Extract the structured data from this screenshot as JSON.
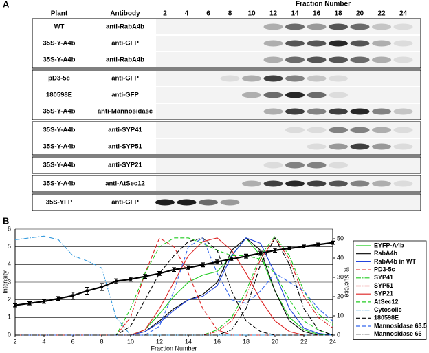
{
  "panel_a": {
    "label": "A",
    "header": {
      "plant": "Plant",
      "antibody": "Antibody",
      "fraction_title": "Fraction Number",
      "fractions": [
        2,
        4,
        6,
        8,
        10,
        12,
        14,
        16,
        18,
        20,
        22,
        24
      ]
    },
    "groups": [
      [
        {
          "plant": "WT",
          "antibody": "anti-RabA4b",
          "bands": [
            0,
            0,
            0,
            0,
            0,
            0.3,
            0.6,
            0.4,
            0.7,
            0.6,
            0.2,
            0.1
          ]
        },
        {
          "plant": "35S-Y-A4b",
          "antibody": "anti-GFP",
          "bands": [
            0,
            0,
            0,
            0,
            0,
            0.3,
            0.7,
            0.7,
            0.9,
            0.7,
            0.3,
            0.1
          ]
        },
        {
          "plant": "35S-Y-A4b",
          "antibody": "anti-RabA4b",
          "bands": [
            0,
            0,
            0,
            0,
            0,
            0.3,
            0.6,
            0.7,
            0.7,
            0.6,
            0.3,
            0.1
          ]
        }
      ],
      [
        {
          "plant": "pD3-5c",
          "antibody": "anti-GFP",
          "bands": [
            0,
            0,
            0,
            0.1,
            0.3,
            0.8,
            0.5,
            0.2,
            0.1,
            0,
            0,
            0
          ]
        },
        {
          "plant": "180598E",
          "antibody": "anti-GFP",
          "bands": [
            0,
            0,
            0,
            0,
            0.3,
            0.6,
            0.9,
            0.6,
            0.1,
            0,
            0,
            0
          ]
        },
        {
          "plant": "35S-Y-A4b",
          "antibody": "anti-Mannosidase",
          "bands": [
            0,
            0,
            0,
            0,
            0,
            0.3,
            0.8,
            0.5,
            0.8,
            0.9,
            0.5,
            0.2
          ]
        }
      ],
      [
        {
          "plant": "35S-Y-A4b",
          "antibody": "anti-SYP41",
          "bands": [
            0,
            0,
            0,
            0,
            0,
            0,
            0.1,
            0.1,
            0.5,
            0.5,
            0.3,
            0.1
          ]
        },
        {
          "plant": "35S-Y-A4b",
          "antibody": "anti-SYP51",
          "bands": [
            0,
            0,
            0,
            0,
            0,
            0,
            0,
            0.1,
            0.4,
            0.8,
            0.4,
            0.1
          ]
        }
      ],
      [
        {
          "plant": "35S-Y-A4b",
          "antibody": "anti-SYP21",
          "bands": [
            0,
            0,
            0,
            0,
            0,
            0.1,
            0.5,
            0.5,
            0.1,
            0,
            0,
            0
          ]
        }
      ],
      [
        {
          "plant": "35S-Y-A4b",
          "antibody": "anti-AtSec12",
          "bands": [
            0,
            0,
            0,
            0,
            0.3,
            0.8,
            0.9,
            0.8,
            0.7,
            0.5,
            0.3,
            0.1
          ]
        }
      ],
      [
        {
          "plant": "35S-YFP",
          "antibody": "anti-GFP",
          "bands": [
            0.95,
            0.95,
            0.6,
            0.4,
            0,
            0,
            0,
            0,
            0,
            0,
            0,
            0
          ]
        }
      ]
    ]
  },
  "chart_data": {
    "type": "line",
    "label": "B",
    "x_label": "Fraction Number",
    "y_label": "Intensity",
    "y2_label": "% Sucrose",
    "x": [
      2,
      3,
      4,
      5,
      6,
      7,
      8,
      9,
      10,
      11,
      12,
      13,
      14,
      15,
      16,
      17,
      18,
      19,
      20,
      21,
      22,
      23,
      24
    ],
    "xlim": [
      2,
      24
    ],
    "xticks": [
      2,
      4,
      6,
      8,
      10,
      12,
      14,
      16,
      18,
      20,
      22,
      24
    ],
    "ylim": [
      0,
      6
    ],
    "yticks": [
      0,
      1,
      2,
      3,
      4,
      5,
      6
    ],
    "y2lim": [
      0,
      55
    ],
    "y2ticks": [
      0,
      10,
      20,
      30,
      40,
      50
    ],
    "grid": true,
    "series": [
      {
        "name": "EYFP-A4b",
        "color": "#22cc22",
        "dash": "solid",
        "values": [
          0,
          0,
          0,
          0,
          0,
          0,
          0,
          0,
          0,
          0.3,
          1.2,
          2.2,
          3,
          3.4,
          3.6,
          4.5,
          5.5,
          4.5,
          2.5,
          1,
          0.3,
          0.05,
          0
        ]
      },
      {
        "name": "RabA4b",
        "color": "#000000",
        "dash": "solid",
        "values": [
          0,
          0,
          0,
          0,
          0,
          0,
          0,
          0,
          0,
          0.2,
          0.8,
          1.5,
          2,
          2.3,
          3,
          4.8,
          5.5,
          4.8,
          2.5,
          0.8,
          0.2,
          0,
          0
        ]
      },
      {
        "name": "RabA4b in WT",
        "color": "#2244dd",
        "dash": "solid",
        "values": [
          0,
          0,
          0,
          0,
          0,
          0,
          0,
          0,
          0,
          0.2,
          0.7,
          1.4,
          2,
          2.2,
          2.8,
          4.5,
          5.5,
          5.2,
          3.5,
          1.5,
          0.4,
          0.1,
          0
        ]
      },
      {
        "name": "PD3-5c",
        "color": "#dd2222",
        "dash": "dashed",
        "values": [
          0,
          0,
          0,
          0,
          0,
          0,
          0,
          0,
          1,
          3.5,
          5.5,
          5,
          3.5,
          1.5,
          0.3,
          0,
          0,
          0,
          0,
          0,
          0,
          0,
          0
        ]
      },
      {
        "name": "SYP41",
        "color": "#22cc22",
        "dash": "dashdot",
        "values": [
          0,
          0,
          0,
          0,
          0,
          0,
          0,
          0,
          0,
          0,
          0,
          0,
          0,
          0,
          0.3,
          1,
          2.5,
          4.5,
          5.6,
          4.5,
          2.5,
          1.2,
          0.6
        ]
      },
      {
        "name": "SYP51",
        "color": "#dd2222",
        "dash": "dashdot",
        "values": [
          0,
          0,
          0,
          0,
          0,
          0,
          0,
          0,
          0,
          0,
          0,
          0,
          0,
          0,
          0.2,
          0.8,
          2.2,
          4.3,
          5.5,
          4.3,
          2.2,
          1,
          0.4
        ]
      },
      {
        "name": "SYP21",
        "color": "#dd2222",
        "dash": "solid",
        "values": [
          0,
          0,
          0,
          0,
          0,
          0,
          0,
          0,
          0,
          0.3,
          1.5,
          3,
          4.5,
          5.3,
          5.5,
          4.8,
          3.5,
          2,
          0.8,
          0.2,
          0,
          0,
          0
        ]
      },
      {
        "name": "AtSec12",
        "color": "#22cc22",
        "dash": "dashed",
        "values": [
          0,
          0,
          0,
          0,
          0,
          0,
          0,
          0,
          1.5,
          3.5,
          5,
          5.5,
          5.5,
          5.2,
          4.8,
          4.5,
          4.5,
          4.3,
          3.5,
          2,
          0.8,
          0.3,
          0
        ]
      },
      {
        "name": "Cytosolic",
        "color": "#3399dd",
        "dash": "dashdot",
        "values": [
          5.4,
          5.5,
          5.6,
          5.4,
          4.5,
          4.2,
          3.8,
          1,
          0,
          0,
          0,
          0,
          0,
          0,
          0,
          0,
          0,
          0,
          0,
          0,
          0,
          0,
          0
        ]
      },
      {
        "name": "180598E",
        "color": "#000000",
        "dash": "dashed",
        "values": [
          0,
          0,
          0,
          0,
          0,
          0,
          0,
          0,
          0.5,
          2,
          3.5,
          4.5,
          5.3,
          5.5,
          4.8,
          2.5,
          0.8,
          0.2,
          0,
          0,
          0,
          0,
          0
        ]
      },
      {
        "name": "Mannosidase 63.5",
        "color": "#3366ee",
        "dash": "dashed",
        "values": [
          0,
          0,
          0,
          0,
          0,
          0,
          0,
          0,
          0,
          0,
          0.5,
          2.5,
          5,
          5.5,
          3.5,
          2,
          1.8,
          2.5,
          3.5,
          3,
          2.5,
          1.5,
          0.8
        ]
      },
      {
        "name": "Mannosidase 66",
        "color": "#000000",
        "dash": "dashdot",
        "values": [
          0,
          0,
          0,
          0,
          0,
          0,
          0,
          0,
          0,
          0,
          0,
          0,
          0,
          0,
          0,
          0.3,
          1.5,
          4,
          5.5,
          4,
          1.5,
          0.3,
          0
        ]
      }
    ],
    "sucrose": {
      "color": "#000000",
      "axis": "y2",
      "values": [
        15.5,
        16.5,
        17.5,
        19,
        20.5,
        23,
        25,
        28,
        29,
        30.5,
        32,
        34,
        35,
        36.5,
        38,
        39.5,
        41,
        42.5,
        44,
        45,
        46,
        47,
        48
      ],
      "errors": [
        0.8,
        0.8,
        1,
        1,
        1.8,
        1.8,
        1.8,
        1.2,
        1,
        1,
        1,
        1,
        1,
        1,
        1,
        1,
        1,
        1,
        1,
        0.8,
        0.8,
        0.8,
        0.8
      ]
    }
  }
}
